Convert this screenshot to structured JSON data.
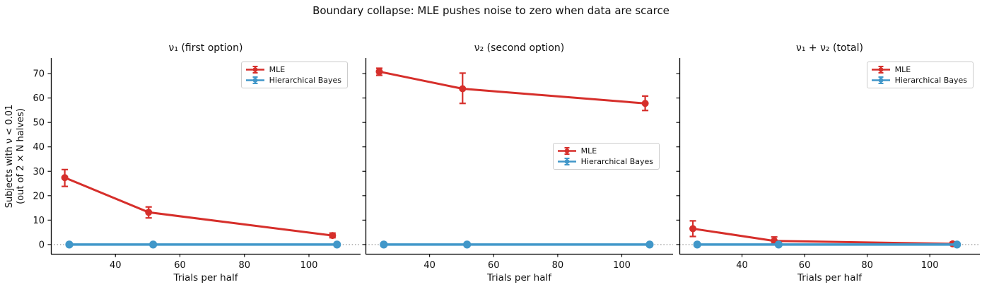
{
  "figure": {
    "title": "Boundary collapse: MLE pushes noise to zero when data are scarce",
    "ylabel_line1": "Subjects with ν < 0.01",
    "ylabel_line2": "(out of 2 × N halves)",
    "colors": {
      "mle": "#d62f2b",
      "bayes": "#4197c9",
      "zero_line": "#999999",
      "spine": "#000000",
      "text": "#111111"
    }
  },
  "chart_data": [
    {
      "type": "line",
      "title": "ν₁ (first option)",
      "xlabel": "Trials per half",
      "ylabel": "Subjects with ν < 0.01 (out of 2 × N halves)",
      "x": [
        25,
        51,
        108
      ],
      "xlim": [
        20,
        116
      ],
      "ylim": [
        -3.8,
        76.4
      ],
      "xticks": [
        40,
        60,
        80,
        100
      ],
      "yticks": [
        0,
        10,
        20,
        30,
        40,
        50,
        60,
        70
      ],
      "show_ytick_labels": true,
      "grid": false,
      "zero_line": true,
      "legend_position": "upper right",
      "series": [
        {
          "name": "MLE",
          "color_key": "mle",
          "x_offset": -0.7,
          "values": [
            27.4,
            13.2,
            3.7
          ],
          "err_low": [
            23.8,
            10.9,
            2.8
          ],
          "err_high": [
            30.7,
            15.4,
            4.7
          ]
        },
        {
          "name": "Hierarchical Bayes",
          "color_key": "bayes",
          "x_offset": 0.7,
          "values": [
            0,
            0,
            0
          ],
          "err_low": [
            0,
            0,
            0
          ],
          "err_high": [
            0,
            0,
            0
          ]
        }
      ]
    },
    {
      "type": "line",
      "title": "ν₂ (second option)",
      "xlabel": "Trials per half",
      "ylabel": "Subjects with ν < 0.01 (out of 2 × N halves)",
      "x": [
        25,
        51,
        108
      ],
      "xlim": [
        20,
        116
      ],
      "ylim": [
        -3.8,
        76.4
      ],
      "xticks": [
        40,
        60,
        80,
        100
      ],
      "yticks": [
        0,
        10,
        20,
        30,
        40,
        50,
        60,
        70
      ],
      "show_ytick_labels": false,
      "grid": false,
      "zero_line": true,
      "legend_position": "center right",
      "series": [
        {
          "name": "MLE",
          "color_key": "mle",
          "x_offset": -0.7,
          "values": [
            70.8,
            63.8,
            57.8
          ],
          "err_low": [
            69.3,
            57.8,
            54.9
          ],
          "err_high": [
            72.2,
            70.2,
            60.8
          ]
        },
        {
          "name": "Hierarchical Bayes",
          "color_key": "bayes",
          "x_offset": 0.7,
          "values": [
            0,
            0,
            0
          ],
          "err_low": [
            0,
            0,
            0
          ],
          "err_high": [
            0,
            0,
            0
          ]
        }
      ]
    },
    {
      "type": "line",
      "title": "ν₁ + ν₂ (total)",
      "xlabel": "Trials per half",
      "ylabel": "Subjects with ν < 0.01 (out of 2 × N halves)",
      "x": [
        25,
        51,
        108
      ],
      "xlim": [
        20,
        116
      ],
      "ylim": [
        -3.8,
        76.4
      ],
      "xticks": [
        40,
        60,
        80,
        100
      ],
      "yticks": [
        0,
        10,
        20,
        30,
        40,
        50,
        60,
        70
      ],
      "show_ytick_labels": false,
      "grid": false,
      "zero_line": true,
      "legend_position": "upper right",
      "series": [
        {
          "name": "MLE",
          "color_key": "mle",
          "x_offset": -0.7,
          "values": [
            6.5,
            1.5,
            0.3
          ],
          "err_low": [
            3.3,
            0.2,
            0
          ],
          "err_high": [
            9.7,
            3.1,
            0.9
          ]
        },
        {
          "name": "Hierarchical Bayes",
          "color_key": "bayes",
          "x_offset": 0.7,
          "values": [
            0,
            0,
            0
          ],
          "err_low": [
            0,
            0,
            0
          ],
          "err_high": [
            0,
            0,
            0
          ]
        }
      ]
    }
  ]
}
